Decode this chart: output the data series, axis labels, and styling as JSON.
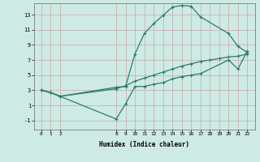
{
  "xlabel": "Humidex (Indice chaleur)",
  "bg_color": "#ceeae4",
  "line_color": "#2d7b6e",
  "grid_color": "#c8a8a8",
  "xlim": [
    -0.8,
    22.8
  ],
  "ylim": [
    -2.2,
    14.5
  ],
  "xticks": [
    0,
    1,
    2,
    8,
    9,
    10,
    11,
    12,
    13,
    14,
    15,
    16,
    17,
    18,
    19,
    20,
    21,
    22
  ],
  "yticks": [
    -1,
    1,
    3,
    5,
    7,
    9,
    11,
    13
  ],
  "line1_x": [
    0,
    1,
    2,
    8,
    9,
    10,
    11,
    12,
    13,
    14,
    15,
    16,
    17,
    20,
    21,
    22
  ],
  "line1_y": [
    3.0,
    2.7,
    2.2,
    3.4,
    3.5,
    7.8,
    10.5,
    11.8,
    12.9,
    14.0,
    14.2,
    14.1,
    12.7,
    10.5,
    8.8,
    8.0
  ],
  "line2_x": [
    0,
    1,
    2,
    8,
    9,
    10,
    11,
    12,
    13,
    14,
    15,
    16,
    17,
    18,
    19,
    20,
    21,
    22
  ],
  "line2_y": [
    3.0,
    2.7,
    2.2,
    3.2,
    3.6,
    4.2,
    4.6,
    5.0,
    5.4,
    5.8,
    6.2,
    6.5,
    6.8,
    7.0,
    7.2,
    7.4,
    7.5,
    7.8
  ],
  "line3_x": [
    0,
    1,
    2,
    8,
    9,
    10,
    11,
    12,
    13,
    14,
    15,
    16,
    17,
    20,
    21,
    22
  ],
  "line3_y": [
    3.0,
    2.7,
    2.2,
    -0.8,
    1.2,
    3.5,
    3.5,
    3.8,
    4.0,
    4.5,
    4.8,
    5.0,
    5.2,
    7.0,
    5.8,
    8.2
  ],
  "marker": "+",
  "markersize": 3,
  "linewidth": 0.9
}
